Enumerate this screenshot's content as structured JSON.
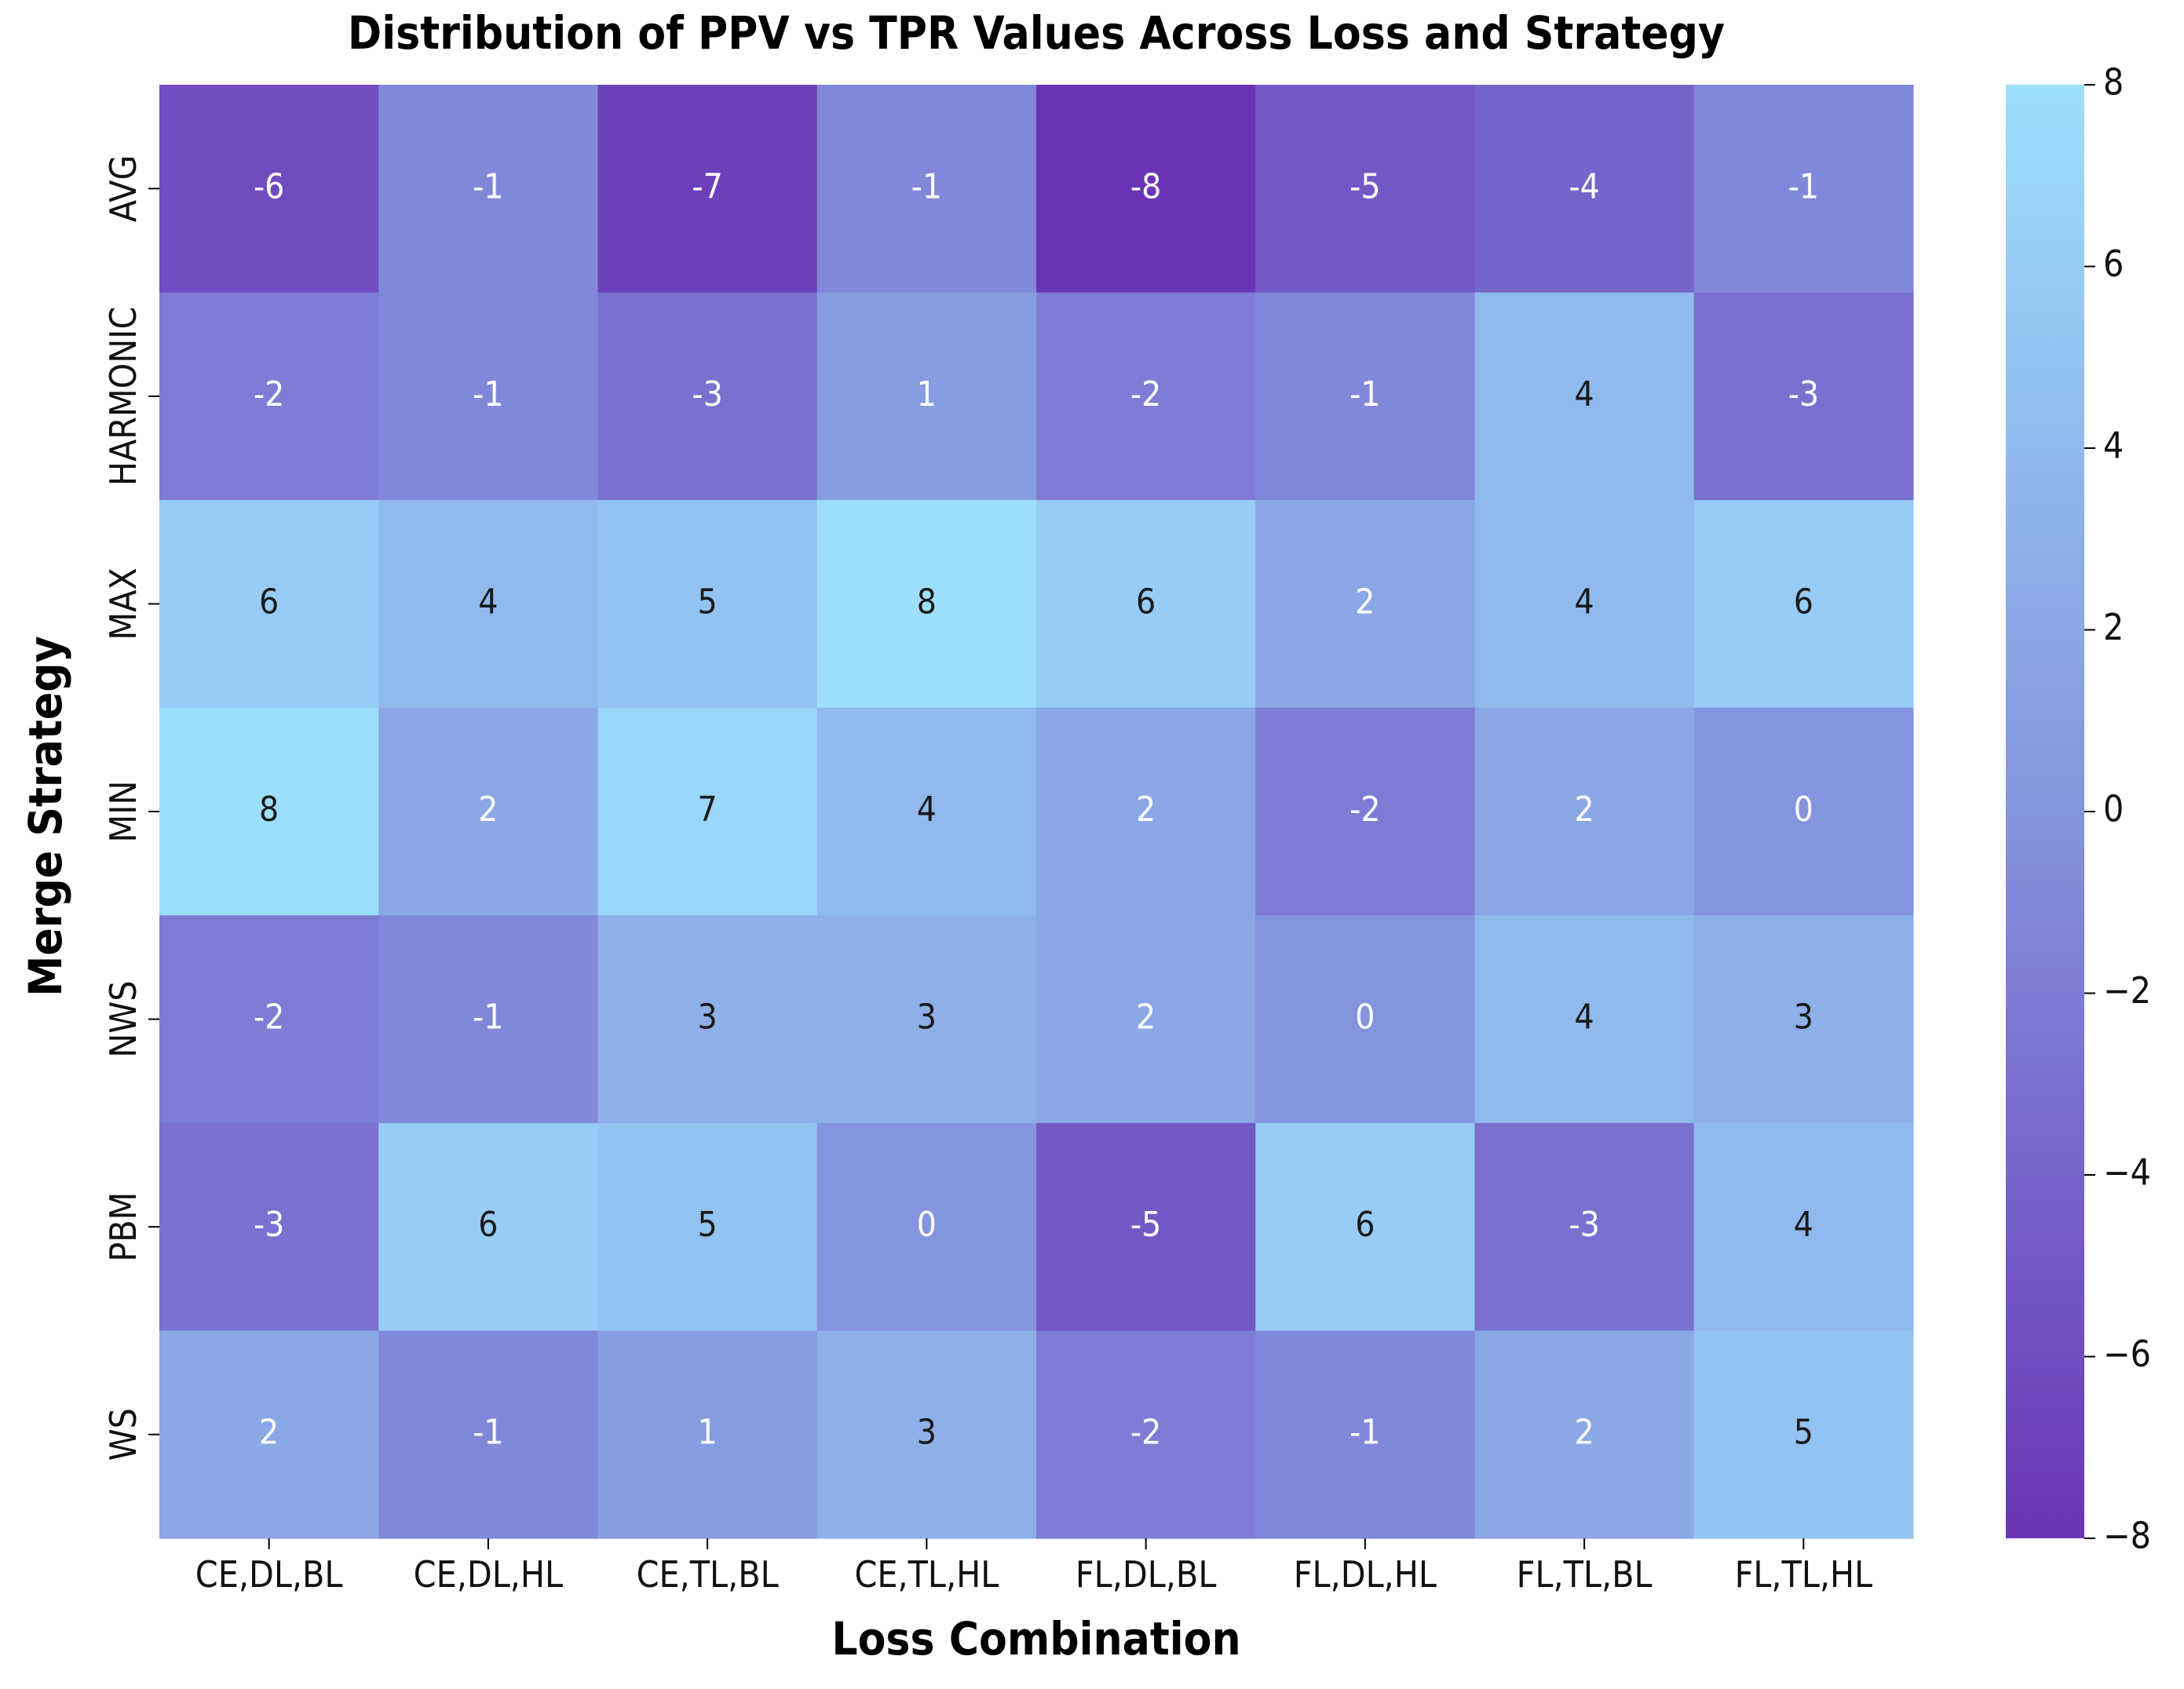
{
  "chart_data": {
    "type": "heatmap",
    "title": "Distribution of PPV vs TPR Values Across Loss and Strategy",
    "xlabel": "Loss Combination",
    "ylabel": "Merge Strategy",
    "x_categories": [
      "CE,DL,BL",
      "CE,DL,HL",
      "CE,TL,BL",
      "CE,TL,HL",
      "FL,DL,BL",
      "FL,DL,HL",
      "FL,TL,BL",
      "FL,TL,HL"
    ],
    "y_categories": [
      "AVG",
      "HARMONIC",
      "MAX",
      "MIN",
      "NWS",
      "PBM",
      "WS"
    ],
    "values": [
      [
        -6,
        -1,
        -7,
        -1,
        -8,
        -5,
        -4,
        -1
      ],
      [
        -2,
        -1,
        -3,
        1,
        -2,
        -1,
        4,
        -3
      ],
      [
        6,
        4,
        5,
        8,
        6,
        2,
        4,
        6
      ],
      [
        8,
        2,
        7,
        4,
        2,
        -2,
        2,
        0
      ],
      [
        -2,
        -1,
        3,
        3,
        2,
        0,
        4,
        3
      ],
      [
        -3,
        6,
        5,
        0,
        -5,
        6,
        -3,
        4
      ],
      [
        2,
        -1,
        1,
        3,
        -2,
        -1,
        2,
        5
      ]
    ],
    "annotations": true,
    "color_range": [
      -8,
      8
    ],
    "colorbar_ticks": [
      "8",
      "6",
      "4",
      "2",
      "0",
      "−2",
      "−4",
      "−6",
      "−8"
    ],
    "colorbar_tick_values": [
      8,
      6,
      4,
      2,
      0,
      -2,
      -4,
      -6,
      -8
    ],
    "colormap": {
      "low": "#6a34b6",
      "mid": "#8494de",
      "high": "#9cdffc"
    },
    "colors": {
      "text_light": "#ffffff",
      "text_dark": "#1a1a1a"
    }
  }
}
